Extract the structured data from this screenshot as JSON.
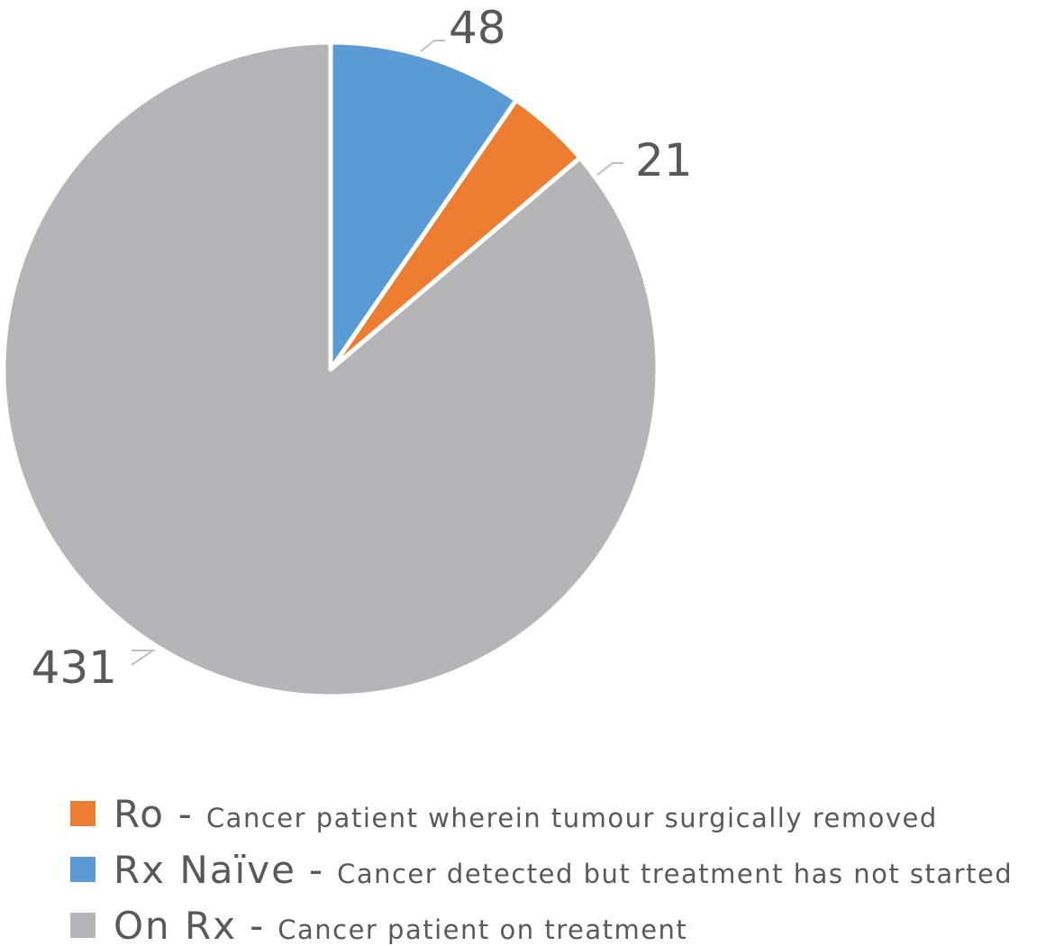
{
  "chart_data": {
    "type": "pie",
    "legend_separator": "-",
    "series": [
      {
        "name": "Ro",
        "description": "Cancer patient wherein tumour surgically removed",
        "color": "#ed7d31",
        "value": 21
      },
      {
        "name": "Rx Naïve",
        "description": "Cancer detected but treatment has not started",
        "color": "#5b9bd5",
        "value": 48
      },
      {
        "name": "On Rx",
        "description": "Cancer patient on treatment",
        "color": "#b5b5b7",
        "value": 431
      }
    ],
    "legend": "bottom"
  }
}
